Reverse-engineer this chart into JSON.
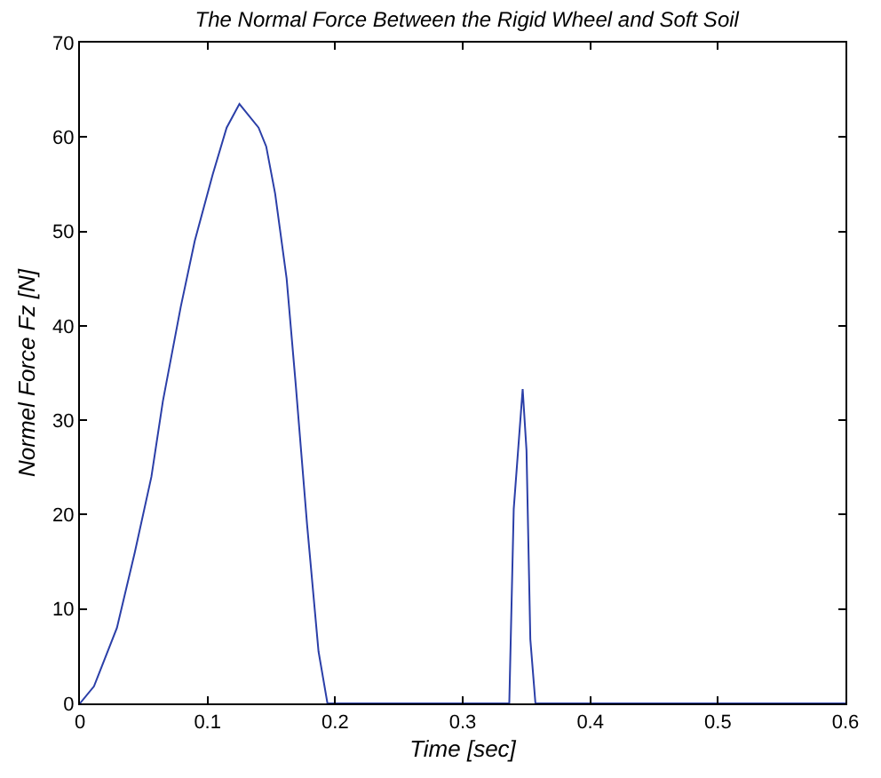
{
  "chart_data": {
    "type": "line",
    "title": "The Normal Force Between the Rigid Wheel and Soft Soil",
    "xlabel": "Time [sec]",
    "ylabel": "Normel Force Fz [N]",
    "x": [
      0,
      0.011,
      0.029,
      0.043,
      0.056,
      0.065,
      0.079,
      0.09,
      0.104,
      0.115,
      0.125,
      0.14,
      0.146,
      0.153,
      0.162,
      0.169,
      0.178,
      0.187,
      0.194,
      0.3365,
      0.34,
      0.347,
      0.35,
      0.353,
      0.357,
      0.6
    ],
    "series": [
      {
        "color": "#2b3fa8",
        "values": [
          0,
          1.8,
          8,
          16,
          24,
          32,
          42,
          49,
          56,
          61,
          63.5,
          61,
          59,
          54,
          45,
          34,
          19,
          5.5,
          0,
          0,
          20.6,
          33.3,
          26.8,
          6.8,
          0,
          0
        ]
      }
    ],
    "xlim": [
      0,
      0.6
    ],
    "ylim": [
      0,
      70
    ],
    "xticks": [
      0,
      0.1,
      0.2,
      0.3,
      0.4,
      0.5,
      0.6
    ],
    "yticks": [
      0,
      10,
      20,
      30,
      40,
      50,
      60,
      70
    ],
    "grid": false,
    "marker": "none",
    "line_style": "solid"
  }
}
